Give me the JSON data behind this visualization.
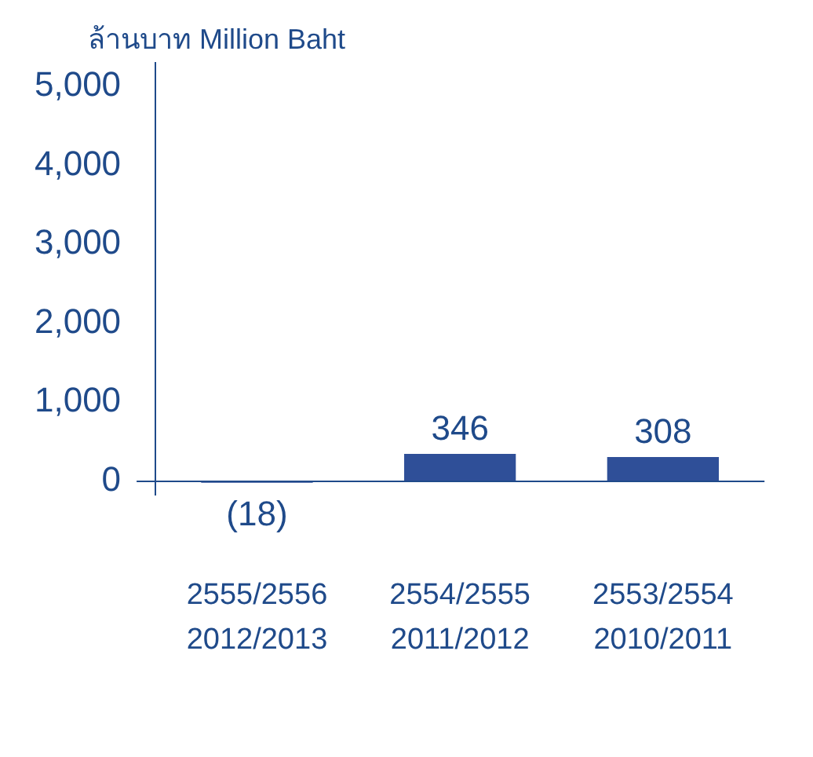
{
  "chart_data": {
    "type": "bar",
    "ylabel": "ล้านบาท Million Baht",
    "categories": [
      "2555/2556\n2012/2013",
      "2554/2555\n2011/2012",
      "2553/2554\n2010/2011"
    ],
    "values": [
      -18,
      346,
      308
    ],
    "value_labels": [
      "(18)",
      "346",
      "308"
    ],
    "color": "#2f4f98",
    "ylim": [
      -170,
      5300
    ],
    "yticks": [
      0,
      {
        "value": 1000,
        "label": "1,000"
      },
      {
        "value": 2000,
        "label": "2,000"
      },
      {
        "value": 3000,
        "label": "3,000"
      },
      {
        "value": 4000,
        "label": "4,000"
      },
      {
        "value": 5000,
        "label": "5,000"
      }
    ],
    "ref_lines": [
      {
        "axis": "y",
        "value": 0,
        "color": "#1f4a8a"
      }
    ],
    "grid": false,
    "legend": false
  }
}
